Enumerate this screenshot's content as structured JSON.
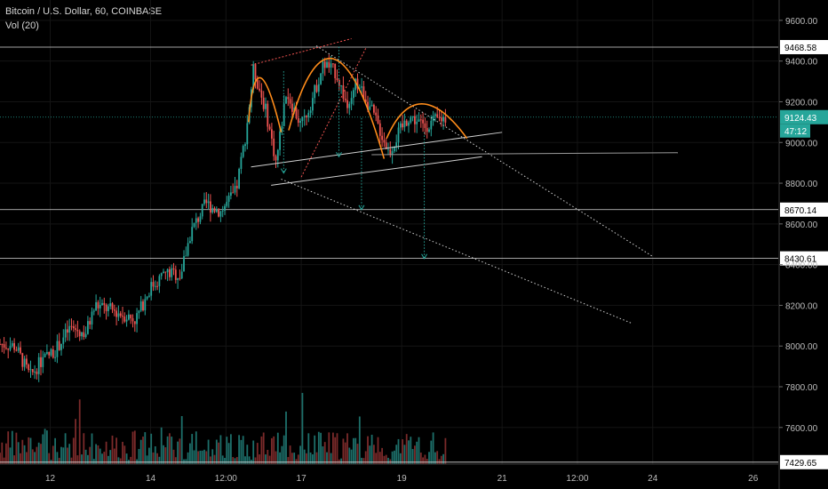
{
  "header": {
    "symbol_line": "Bitcoin / U.S. Dollar, 60, COINBASE",
    "volume_line": "Vol (20)"
  },
  "colors": {
    "background": "#000000",
    "bull": "#26a69a",
    "bear": "#ef5350",
    "volume_bull": "#1d6f6a",
    "volume_bear": "#7a2a2a",
    "price_badge": "#26a69a",
    "level_badge": "#ffffff",
    "pattern_orange": "#ff8c1a",
    "guide_line": "#cfcfcf",
    "projection_teal": "#26a69a"
  },
  "chart_data": {
    "type": "candlestick",
    "title": "Bitcoin / U.S. Dollar, 60, COINBASE",
    "ylim": [
      7420,
      9700
    ],
    "y_ticks": [
      9600,
      9400,
      9200,
      9000,
      8800,
      8600,
      8400,
      8200,
      8000,
      7800,
      7600
    ],
    "y_tick_labels": [
      "9600.00",
      "9400.00",
      "9200.00",
      "9000.00",
      "8800.00",
      "8600.00",
      "8400.00",
      "8200.00",
      "8000.00",
      "7800.00",
      "7600.00"
    ],
    "x_tick_labels": [
      "12",
      "14",
      "12:00",
      "17",
      "19",
      "21",
      "12:00",
      "24",
      "26"
    ],
    "x_tick_positions_days": [
      12,
      14,
      15.5,
      17,
      19,
      21,
      22.5,
      24,
      26
    ],
    "x_range_days": [
      11,
      26.5
    ],
    "horizontal_levels": [
      {
        "price": 9468.58,
        "label": "9468.58"
      },
      {
        "price": 8670.14,
        "label": "8670.14"
      },
      {
        "price": 8430.61,
        "label": "8430.61"
      },
      {
        "price": 7429.65,
        "label": "7429.65"
      }
    ],
    "current_price": {
      "value": 9124.43,
      "label": "9124.43",
      "countdown": "47:12"
    },
    "price_path_anchors": [
      [
        11.0,
        8010
      ],
      [
        11.3,
        8000
      ],
      [
        11.6,
        7850
      ],
      [
        11.8,
        7920
      ],
      [
        12.1,
        7980
      ],
      [
        12.4,
        8090
      ],
      [
        12.7,
        8060
      ],
      [
        12.9,
        8200
      ],
      [
        13.3,
        8170
      ],
      [
        13.7,
        8130
      ],
      [
        14.0,
        8290
      ],
      [
        14.3,
        8360
      ],
      [
        14.6,
        8350
      ],
      [
        14.8,
        8560
      ],
      [
        15.1,
        8700
      ],
      [
        15.4,
        8660
      ],
      [
        15.7,
        8760
      ],
      [
        15.9,
        9050
      ],
      [
        16.05,
        9360
      ],
      [
        16.3,
        9150
      ],
      [
        16.5,
        8900
      ],
      [
        16.7,
        9250
      ],
      [
        17.0,
        9080
      ],
      [
        17.2,
        9200
      ],
      [
        17.45,
        9390
      ],
      [
        17.7,
        9340
      ],
      [
        17.95,
        9150
      ],
      [
        18.1,
        9300
      ],
      [
        18.3,
        9210
      ],
      [
        18.5,
        9100
      ],
      [
        18.75,
        8950
      ],
      [
        18.95,
        9050
      ],
      [
        19.15,
        9130
      ],
      [
        19.45,
        9080
      ],
      [
        19.75,
        9115
      ],
      [
        19.9,
        9124
      ]
    ],
    "volume_anchor_max": 350
  }
}
